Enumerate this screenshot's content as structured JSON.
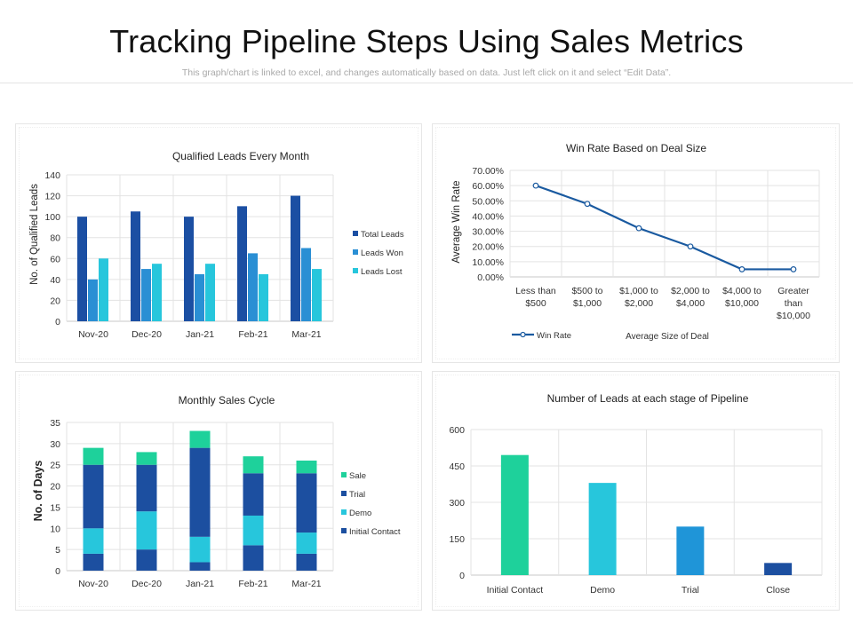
{
  "header": {
    "title": "Tracking Pipeline Steps Using Sales Metrics",
    "subtitle": "This graph/chart is linked to excel, and changes automatically  based on data. Just left click on it and select “Edit Data”."
  },
  "chart_data": [
    {
      "id": "qualified-leads",
      "type": "bar",
      "title": "Qualified Leads Every Month",
      "xlabel": "",
      "ylabel": "No. of Qualified Leads",
      "ylim": [
        0,
        140
      ],
      "yticks": [
        0,
        20,
        40,
        60,
        80,
        100,
        120,
        140
      ],
      "categories": [
        "Nov-20",
        "Dec-20",
        "Jan-21",
        "Feb-21",
        "Mar-21"
      ],
      "series": [
        {
          "name": "Total Leads",
          "color": "#1b4fa3",
          "values": [
            100,
            105,
            100,
            110,
            120
          ]
        },
        {
          "name": "Leads Won",
          "color": "#2a8fd4",
          "values": [
            40,
            50,
            45,
            65,
            70
          ]
        },
        {
          "name": "Leads Lost",
          "color": "#27c6dc",
          "values": [
            60,
            55,
            55,
            45,
            50
          ]
        }
      ],
      "legend": "right"
    },
    {
      "id": "win-rate",
      "type": "line",
      "title": "Win Rate Based on Deal Size",
      "xlabel": "Average Size of Deal",
      "ylabel": "Average Win Rate",
      "ylim": [
        0,
        70
      ],
      "yticks": [
        "0.00%",
        "10.00%",
        "20.00%",
        "30.00%",
        "40.00%",
        "50.00%",
        "60.00%",
        "70.00%"
      ],
      "categories": [
        [
          "Less than",
          "$500"
        ],
        [
          "$500 to",
          "$1,000"
        ],
        [
          "$1,000 to",
          "$2,000"
        ],
        [
          "$2,000 to",
          "$4,000"
        ],
        [
          "$4,000 to",
          "$10,000"
        ],
        [
          "Greater",
          "than",
          "$10,000"
        ]
      ],
      "series": [
        {
          "name": "Win Rate",
          "color": "#1a5aa0",
          "values": [
            60,
            48,
            32,
            20,
            5,
            5
          ]
        }
      ],
      "legend": "bottom-left"
    },
    {
      "id": "sales-cycle",
      "type": "bar",
      "stacked": true,
      "title": "Monthly Sales Cycle",
      "xlabel": "",
      "ylabel": "No. of Days",
      "ylim": [
        0,
        35
      ],
      "yticks": [
        0,
        5,
        10,
        15,
        20,
        25,
        30,
        35
      ],
      "categories": [
        "Nov-20",
        "Dec-20",
        "Jan-21",
        "Feb-21",
        "Mar-21"
      ],
      "series": [
        {
          "name": "Initial Contact",
          "color": "#1c4fa0",
          "values": [
            4,
            5,
            2,
            6,
            4
          ]
        },
        {
          "name": "Demo",
          "color": "#27c6dc",
          "values": [
            6,
            9,
            6,
            7,
            5
          ]
        },
        {
          "name": "Trial",
          "color": "#1c4fa0",
          "values": [
            15,
            11,
            21,
            10,
            14
          ]
        },
        {
          "name": "Sale",
          "color": "#1ed19b",
          "values": [
            4,
            3,
            4,
            4,
            3
          ]
        }
      ],
      "legend_order": [
        "Sale",
        "Trial",
        "Demo",
        "Initial Contact"
      ],
      "legend": "right"
    },
    {
      "id": "pipeline-leads",
      "type": "bar",
      "title": "Number of Leads at each stage of Pipeline",
      "xlabel": "",
      "ylabel": "",
      "ylim": [
        0,
        600
      ],
      "yticks": [
        0,
        150,
        300,
        450,
        600
      ],
      "categories": [
        "Initial Contact",
        "Demo",
        "Trial",
        "Close"
      ],
      "values": [
        495,
        380,
        200,
        50
      ],
      "colors": [
        "#1ed19b",
        "#27c6dc",
        "#1f95d8",
        "#1c4fa0"
      ]
    }
  ]
}
